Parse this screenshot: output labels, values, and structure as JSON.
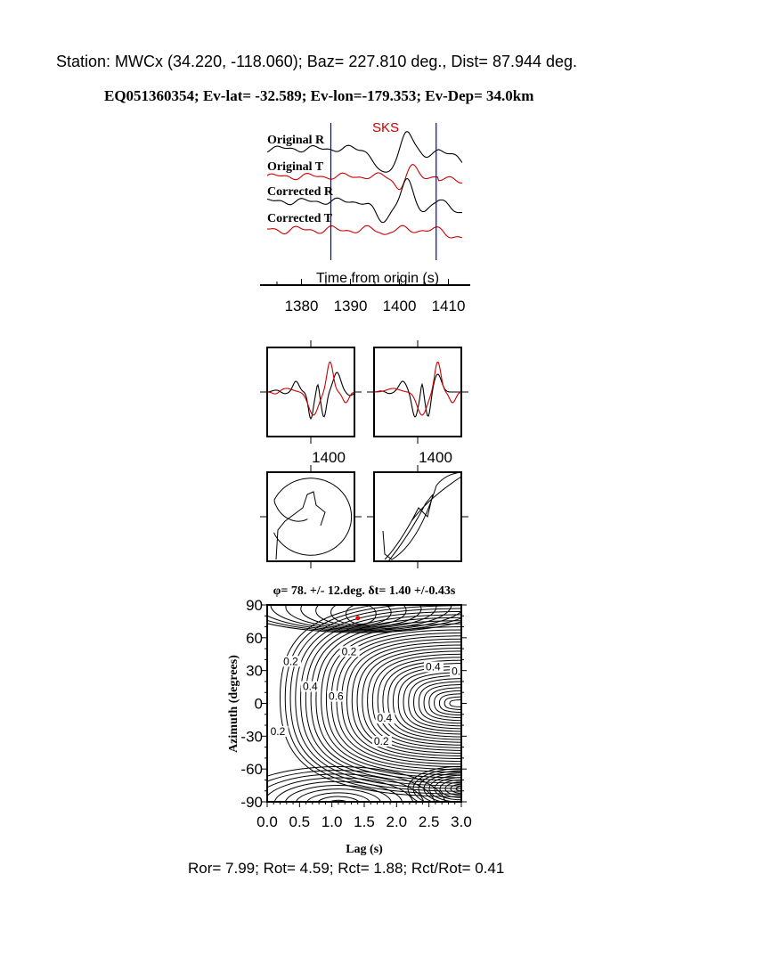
{
  "header": {
    "station_line": "Station: MWCx (34.220, -118.060); Baz=  227.810 deg., Dist=   87.944 deg.",
    "event_line": "EQ051360354; Ev-lat= -32.589; Ev-lon=-179.353; Ev-Dep= 34.0km"
  },
  "colors": {
    "radial": "#000000",
    "transverse": "#cc0000",
    "window": "#0000cc",
    "best_fit": "#ff0000"
  },
  "chart_data": [
    {
      "type": "line",
      "phase_label": "SKS",
      "trace_labels": [
        "Original R",
        "Original T",
        "Corrected R",
        "Corrected T"
      ],
      "xlabel": "Time from origin (s)",
      "xticks": [
        "1380",
        "1390",
        "1400",
        "1410"
      ],
      "xlim": [
        1373,
        1413
      ],
      "window": [
        1386,
        1407.5
      ]
    },
    {
      "type": "line",
      "panels": [
        "waveform-original",
        "waveform-corrected"
      ],
      "xtick_label": "1400"
    },
    {
      "type": "line",
      "panels": [
        "particle-motion-original",
        "particle-motion-corrected"
      ]
    },
    {
      "type": "heatmap",
      "title": "φ= 78. +/- 12.deg. δt= 1.40 +/-0.43s",
      "xlabel": "Lag (s)",
      "ylabel": "Azimuth (degrees)",
      "xlim": [
        0,
        3
      ],
      "ylim": [
        -90,
        90
      ],
      "xticks": [
        "0.0",
        "0.5",
        "1.0",
        "1.5",
        "2.0",
        "2.5",
        "3.0"
      ],
      "yticks": [
        "90",
        "60",
        "30",
        "0",
        "-30",
        "-60",
        "-90"
      ],
      "contour_labels": [
        "0.2",
        "0.2",
        "0.4",
        "0.6",
        "0.4",
        "0.6",
        "0.4",
        "0.2",
        "0.2"
      ],
      "best_fit": {
        "lag": 1.4,
        "azimuth": 78
      }
    }
  ],
  "footer": {
    "ratios": "Ror= 7.99; Rot= 4.59; Rct= 1.88; Rct/Rot= 0.41"
  }
}
